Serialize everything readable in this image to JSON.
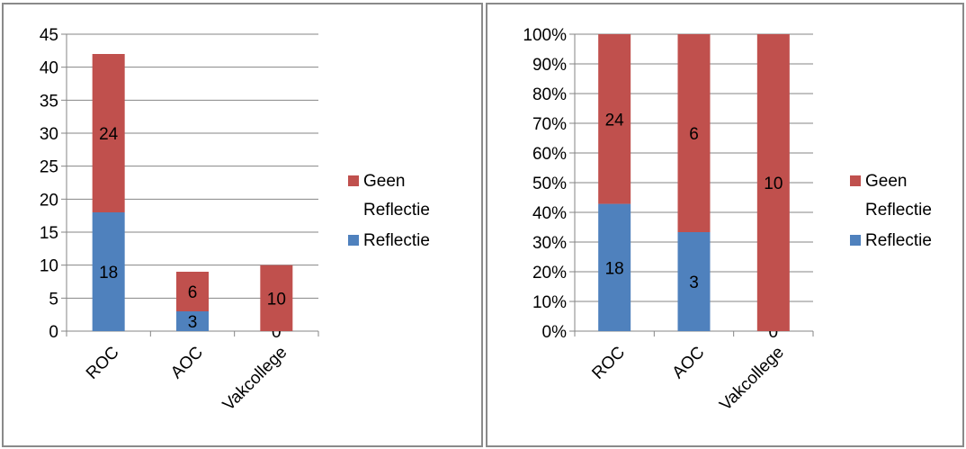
{
  "colors": {
    "reflectie": "#4F81BD",
    "geen_reflectie": "#C0504D",
    "grid": "#868686"
  },
  "chart_data": [
    {
      "type": "bar",
      "stacked": true,
      "categories": [
        "ROC",
        "AOC",
        "Vakcollege"
      ],
      "series": [
        {
          "name": "Reflectie",
          "values": [
            18,
            3,
            0
          ]
        },
        {
          "name": "Geen Reflectie",
          "values": [
            24,
            6,
            10
          ]
        }
      ],
      "ylim": [
        0,
        45
      ],
      "yticks": [
        "0",
        "5",
        "10",
        "15",
        "20",
        "25",
        "30",
        "35",
        "40",
        "45"
      ],
      "legend_position": "right",
      "grid": true
    },
    {
      "type": "bar",
      "stacked": true,
      "percent": true,
      "categories": [
        "ROC",
        "AOC",
        "Vakcollege"
      ],
      "series": [
        {
          "name": "Reflectie",
          "values": [
            18,
            3,
            0
          ]
        },
        {
          "name": "Geen Reflectie",
          "values": [
            24,
            6,
            10
          ]
        }
      ],
      "ylim": [
        0,
        100
      ],
      "yticks": [
        "0%",
        "10%",
        "20%",
        "30%",
        "40%",
        "50%",
        "60%",
        "70%",
        "80%",
        "90%",
        "100%"
      ],
      "legend_position": "right",
      "grid": true
    }
  ],
  "legend": {
    "geen_reflectie_line1": "Geen",
    "geen_reflectie_line2": "Reflectie",
    "reflectie": "Reflectie"
  }
}
